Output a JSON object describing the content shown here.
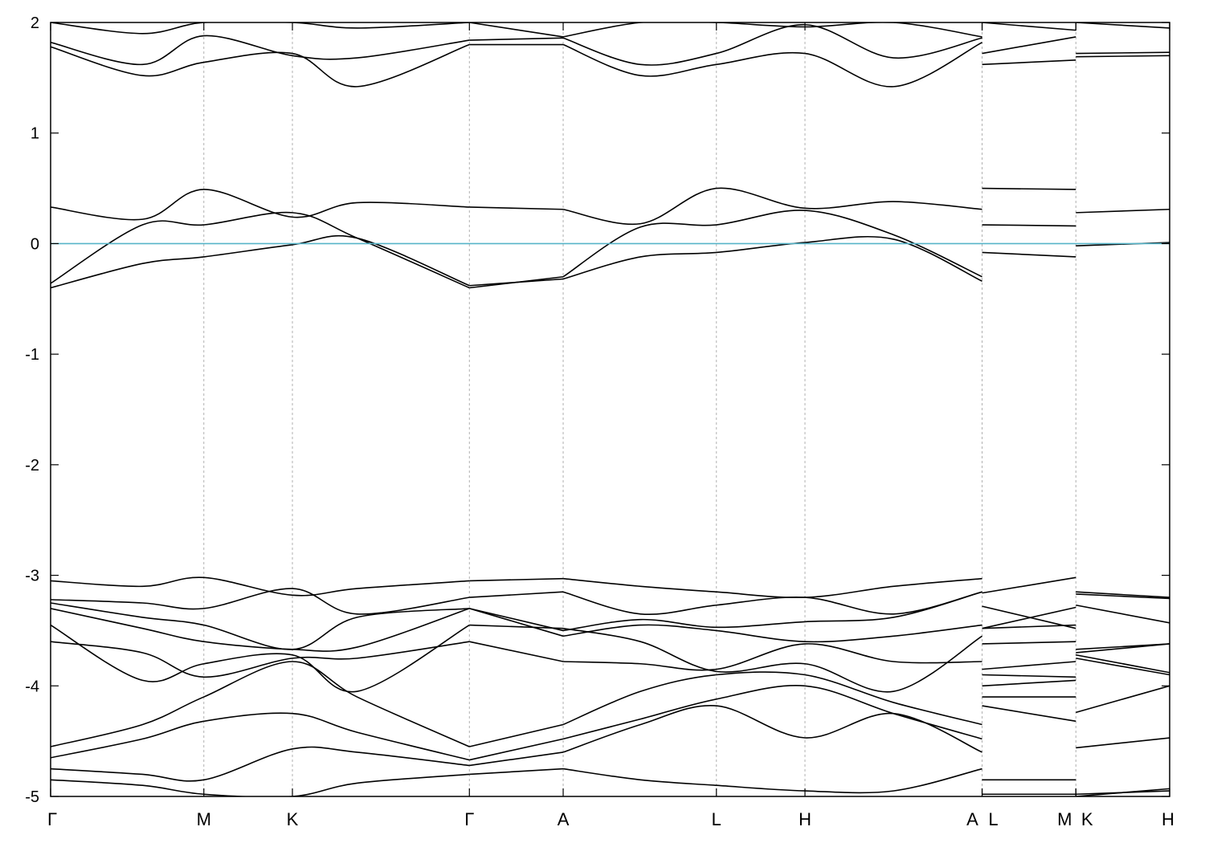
{
  "chart_data": {
    "type": "line",
    "title": "",
    "xlabel": "",
    "ylabel": "",
    "ylim": [
      -5,
      2
    ],
    "yticks": [
      -5,
      -4,
      -3,
      -2,
      -1,
      0,
      1,
      2
    ],
    "ytick_labels": [
      "-5",
      "-4",
      "-3",
      "-2",
      "-1",
      "0",
      "1",
      "2"
    ],
    "grid": "vertical dashed lines at high-symmetry points",
    "fermi_level": 0,
    "colors": {
      "bands": "#000000",
      "fermi": "#56b4c8",
      "grid": "#b0b0b0"
    },
    "kpoints": [
      {
        "label": "Γ",
        "x": 0
      },
      {
        "label": "M",
        "x": 1.0
      },
      {
        "label": "K",
        "x": 1.578
      },
      {
        "label": "Γ",
        "x": 2.733
      },
      {
        "label": "A",
        "x": 3.345
      },
      {
        "label": "L",
        "x": 4.345
      },
      {
        "label": "H",
        "x": 4.923
      },
      {
        "label": "A",
        "x": 6.079
      },
      {
        "label": "L",
        "x": 6.079
      },
      {
        "label": "M",
        "x": 6.691
      },
      {
        "label": "K",
        "x": 6.691
      },
      {
        "label": "H",
        "x": 7.303
      }
    ],
    "xlim": [
      0,
      7.303
    ],
    "segments": [
      {
        "x": [
          0,
          0.6,
          1.0,
          1.578,
          2.0,
          2.733
        ],
        "bands": [
          [
            -0.4,
            -0.18,
            -0.12,
            -0.01,
            0.05,
            -0.38
          ],
          [
            -0.36,
            0.17,
            0.17,
            0.28,
            0.05,
            -0.4
          ],
          [
            0.33,
            0.22,
            0.49,
            0.24,
            0.37,
            0.33
          ],
          [
            1.78,
            1.52,
            1.64,
            1.72,
            1.42,
            1.8
          ],
          [
            1.82,
            1.62,
            1.88,
            1.7,
            1.68,
            1.84
          ],
          [
            2.0,
            1.9,
            2.0,
            2.0,
            1.95,
            2.0
          ],
          [
            -3.05,
            -3.1,
            -3.02,
            -3.18,
            -3.12,
            -3.05
          ],
          [
            -3.22,
            -3.25,
            -3.3,
            -3.12,
            -3.35,
            -3.2
          ],
          [
            -3.25,
            -3.38,
            -3.45,
            -3.67,
            -3.38,
            -3.3
          ],
          [
            -3.3,
            -3.48,
            -3.6,
            -3.67,
            -3.65,
            -3.3
          ],
          [
            -3.45,
            -3.95,
            -3.8,
            -3.72,
            -4.05,
            -3.45
          ],
          [
            -3.6,
            -3.7,
            -3.92,
            -3.75,
            -3.75,
            -3.6
          ],
          [
            -4.55,
            -4.35,
            -4.1,
            -3.78,
            -4.1,
            -4.55
          ],
          [
            -4.65,
            -4.48,
            -4.32,
            -4.25,
            -4.42,
            -4.67
          ],
          [
            -4.75,
            -4.8,
            -4.85,
            -4.57,
            -4.6,
            -4.72
          ],
          [
            -4.85,
            -4.9,
            -4.98,
            -5.0,
            -4.88,
            -4.8
          ]
        ]
      },
      {
        "x": [
          2.733,
          3.345
        ],
        "bands": [
          [
            -0.38,
            -0.32
          ],
          [
            -0.4,
            -0.3
          ],
          [
            0.33,
            0.31
          ],
          [
            1.8,
            1.8
          ],
          [
            1.84,
            1.86
          ],
          [
            2.0,
            1.87
          ],
          [
            -3.05,
            -3.03
          ],
          [
            -3.2,
            -3.15
          ],
          [
            -3.3,
            -3.5
          ],
          [
            -3.3,
            -3.55
          ],
          [
            -3.45,
            -3.48
          ],
          [
            -3.6,
            -3.78
          ],
          [
            -4.55,
            -4.35
          ],
          [
            -4.67,
            -4.48
          ],
          [
            -4.72,
            -4.6
          ],
          [
            -4.8,
            -4.75
          ]
        ]
      },
      {
        "x": [
          3.345,
          3.85,
          4.345,
          4.923,
          5.5,
          6.079
        ],
        "bands": [
          [
            -0.32,
            -0.12,
            -0.08,
            0.01,
            0.04,
            -0.34
          ],
          [
            -0.3,
            0.15,
            0.17,
            0.3,
            0.08,
            -0.3
          ],
          [
            0.31,
            0.18,
            0.5,
            0.32,
            0.38,
            0.31
          ],
          [
            1.8,
            1.52,
            1.62,
            1.72,
            1.42,
            1.82
          ],
          [
            1.86,
            1.62,
            1.72,
            1.98,
            1.68,
            1.86
          ],
          [
            1.87,
            2.0,
            2.0,
            1.96,
            2.0,
            1.87
          ],
          [
            -3.03,
            -3.1,
            -3.15,
            -3.2,
            -3.1,
            -3.03
          ],
          [
            -3.15,
            -3.35,
            -3.27,
            -3.2,
            -3.35,
            -3.15
          ],
          [
            -3.5,
            -3.4,
            -3.47,
            -3.42,
            -3.38,
            -3.15
          ],
          [
            -3.55,
            -3.45,
            -3.5,
            -3.6,
            -3.55,
            -3.45
          ],
          [
            -3.48,
            -3.6,
            -3.87,
            -3.8,
            -4.05,
            -3.55
          ],
          [
            -3.78,
            -3.8,
            -3.85,
            -3.62,
            -3.78,
            -3.78
          ],
          [
            -4.35,
            -4.05,
            -3.9,
            -3.9,
            -4.15,
            -4.35
          ],
          [
            -4.48,
            -4.3,
            -4.12,
            -4.0,
            -4.25,
            -4.48
          ],
          [
            -4.6,
            -4.35,
            -4.18,
            -4.47,
            -4.25,
            -4.6
          ],
          [
            -4.75,
            -4.85,
            -4.9,
            -4.95,
            -4.95,
            -4.75
          ]
        ]
      },
      {
        "x": [
          6.079,
          6.691
        ],
        "bands": [
          [
            -0.08,
            -0.12
          ],
          [
            0.17,
            0.16
          ],
          [
            0.5,
            0.49
          ],
          [
            1.62,
            1.66
          ],
          [
            1.72,
            1.87
          ],
          [
            2.0,
            1.93
          ],
          [
            -3.16,
            -3.02
          ],
          [
            -3.28,
            -3.48
          ],
          [
            -3.48,
            -3.29
          ],
          [
            -3.48,
            -3.45
          ],
          [
            -3.62,
            -3.6
          ],
          [
            -3.85,
            -3.78
          ],
          [
            -3.9,
            -3.92
          ],
          [
            -4.0,
            -3.95
          ],
          [
            -4.1,
            -4.1
          ],
          [
            -4.18,
            -4.32
          ],
          [
            -4.85,
            -4.85
          ],
          [
            -4.98,
            -4.98
          ]
        ]
      },
      {
        "x": [
          6.691,
          7.303
        ],
        "bands": [
          [
            -0.02,
            0.01
          ],
          [
            0.28,
            0.31
          ],
          [
            1.69,
            1.7
          ],
          [
            1.72,
            1.73
          ],
          [
            2.0,
            1.95
          ],
          [
            -3.15,
            -3.2
          ],
          [
            -3.17,
            -3.21
          ],
          [
            -3.27,
            -3.43
          ],
          [
            -3.67,
            -3.62
          ],
          [
            -3.7,
            -3.62
          ],
          [
            -3.72,
            -3.88
          ],
          [
            -3.75,
            -3.9
          ],
          [
            -4.24,
            -4.0
          ],
          [
            -4.56,
            -4.47
          ],
          [
            -5.0,
            -4.93
          ],
          [
            -4.98,
            -4.95
          ]
        ]
      }
    ]
  }
}
